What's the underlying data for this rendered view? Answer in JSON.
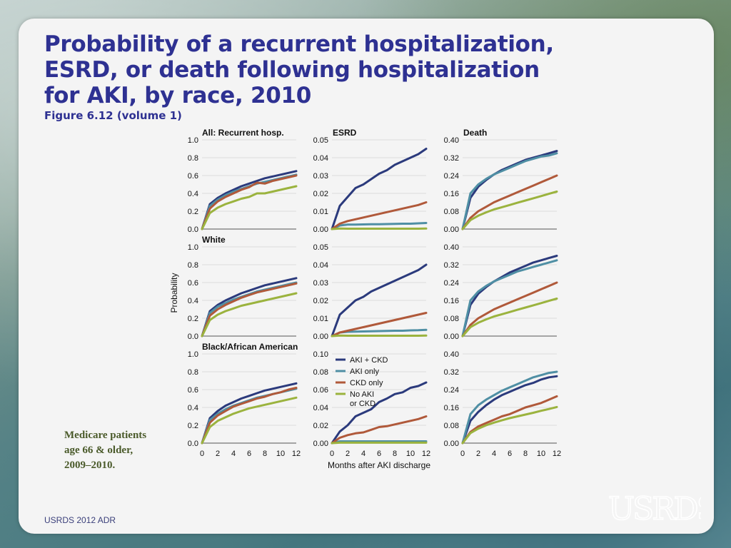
{
  "slide": {
    "title_lines": [
      "Probability of a recurrent hospitalization,",
      "ESRD, or death following hospitalization",
      "for AKI, by race, 2010"
    ],
    "subtitle": "Figure 6.12 (volume 1)",
    "note_lines": [
      "Medicare patients",
      "age 66 & older,",
      "2009–2010."
    ],
    "footer": "USRDS 2012 ADR",
    "logo_text": "USRDS"
  },
  "colors": {
    "AKI + CKD": "#2b3a7c",
    "AKI only": "#4f8fa4",
    "CKD only": "#b0593a",
    "No AKI or CKD": "#9bb33e"
  },
  "chart_data": {
    "type": "line",
    "xlabel": "Months after AKI discharge",
    "ylabel": "Probability",
    "x": [
      0,
      1,
      2,
      3,
      4,
      5,
      6,
      7,
      8,
      9,
      10,
      11,
      12
    ],
    "x_ticks": [
      0,
      2,
      4,
      6,
      8,
      10,
      12
    ],
    "legend": {
      "placement": "inside bottom-middle panel, top-left",
      "entries": [
        {
          "label": [
            "AKI + CKD"
          ],
          "series": "AKI + CKD"
        },
        {
          "label": [
            "AKI only"
          ],
          "series": "AKI only"
        },
        {
          "label": [
            "CKD only"
          ],
          "series": "CKD only"
        },
        {
          "label": [
            "No AKI",
            "or CKD"
          ],
          "series": "No AKI or CKD"
        }
      ]
    },
    "rows": [
      {
        "key": "all",
        "label": "All: Recurrent hosp.",
        "outcome_labels": [
          "",
          "ESRD",
          "Death"
        ]
      },
      {
        "key": "white",
        "label": "White",
        "outcome_labels": [
          "",
          "",
          ""
        ]
      },
      {
        "key": "black",
        "label": "Black/African American",
        "outcome_labels": [
          "",
          "",
          ""
        ]
      }
    ],
    "panels": [
      {
        "row": 0,
        "col": 0,
        "ylim": [
          0,
          1.0
        ],
        "yticks": [
          "0.0",
          "0.2",
          "0.4",
          "0.6",
          "0.8",
          "1.0"
        ],
        "series": [
          {
            "name": "AKI + CKD",
            "values": [
              0,
              0.28,
              0.35,
              0.4,
              0.44,
              0.48,
              0.51,
              0.54,
              0.57,
              0.59,
              0.61,
              0.63,
              0.65
            ]
          },
          {
            "name": "AKI only",
            "values": [
              0,
              0.26,
              0.33,
              0.38,
              0.42,
              0.45,
              0.48,
              0.51,
              0.53,
              0.55,
              0.57,
              0.59,
              0.61
            ]
          },
          {
            "name": "CKD only",
            "values": [
              0,
              0.23,
              0.31,
              0.36,
              0.4,
              0.44,
              0.47,
              0.52,
              0.51,
              0.54,
              0.56,
              0.58,
              0.6
            ]
          },
          {
            "name": "No AKI or CKD",
            "values": [
              0,
              0.18,
              0.24,
              0.28,
              0.31,
              0.34,
              0.36,
              0.4,
              0.4,
              0.42,
              0.44,
              0.46,
              0.48
            ]
          }
        ]
      },
      {
        "row": 0,
        "col": 1,
        "ylim": [
          0,
          0.05
        ],
        "yticks": [
          "0.00",
          "0.01",
          "0.02",
          "0.03",
          "0.04",
          "0.05"
        ],
        "series": [
          {
            "name": "AKI + CKD",
            "values": [
              0,
              0.013,
              0.018,
              0.023,
              0.025,
              0.028,
              0.031,
              0.033,
              0.036,
              0.038,
              0.04,
              0.042,
              0.045
            ]
          },
          {
            "name": "AKI only",
            "values": [
              0,
              0.002,
              0.0025,
              0.0025,
              0.0026,
              0.0027,
              0.0027,
              0.0028,
              0.0029,
              0.003,
              0.003,
              0.0032,
              0.0034
            ]
          },
          {
            "name": "CKD only",
            "values": [
              0,
              0.003,
              0.0045,
              0.0055,
              0.0065,
              0.0075,
              0.0085,
              0.0095,
              0.0105,
              0.0115,
              0.0125,
              0.0135,
              0.015
            ]
          },
          {
            "name": "No AKI or CKD",
            "values": [
              0,
              0.0003,
              0.0002,
              0.0002,
              0.0002,
              0.0002,
              0.0002,
              0.0002,
              0.0002,
              0.0002,
              0.0002,
              0.0002,
              0.0003
            ]
          }
        ]
      },
      {
        "row": 0,
        "col": 2,
        "ylim": [
          0,
          0.4
        ],
        "yticks": [
          "0.00",
          "0.08",
          "0.16",
          "0.24",
          "0.32",
          "0.40"
        ],
        "series": [
          {
            "name": "AKI + CKD",
            "values": [
              0,
              0.14,
              0.19,
              0.22,
              0.245,
              0.265,
              0.28,
              0.295,
              0.31,
              0.32,
              0.33,
              0.34,
              0.35
            ]
          },
          {
            "name": "AKI only",
            "values": [
              0,
              0.16,
              0.2,
              0.225,
              0.245,
              0.26,
              0.275,
              0.29,
              0.305,
              0.315,
              0.325,
              0.33,
              0.34
            ]
          },
          {
            "name": "CKD only",
            "values": [
              0,
              0.05,
              0.08,
              0.1,
              0.12,
              0.135,
              0.15,
              0.165,
              0.18,
              0.195,
              0.21,
              0.225,
              0.24
            ]
          },
          {
            "name": "No AKI or CKD",
            "values": [
              0,
              0.04,
              0.06,
              0.075,
              0.088,
              0.098,
              0.108,
              0.118,
              0.128,
              0.138,
              0.148,
              0.158,
              0.168
            ]
          }
        ]
      },
      {
        "row": 1,
        "col": 0,
        "ylim": [
          0,
          1.0
        ],
        "yticks": [
          "0.0",
          "0.2",
          "0.4",
          "0.6",
          "0.8",
          "1.0"
        ],
        "series": [
          {
            "name": "AKI + CKD",
            "values": [
              0,
              0.28,
              0.35,
              0.4,
              0.44,
              0.48,
              0.51,
              0.54,
              0.57,
              0.59,
              0.61,
              0.63,
              0.65
            ]
          },
          {
            "name": "AKI only",
            "values": [
              0,
              0.26,
              0.33,
              0.37,
              0.41,
              0.44,
              0.47,
              0.5,
              0.52,
              0.54,
              0.56,
              0.58,
              0.6
            ]
          },
          {
            "name": "CKD only",
            "values": [
              0,
              0.23,
              0.3,
              0.35,
              0.39,
              0.43,
              0.46,
              0.49,
              0.51,
              0.53,
              0.55,
              0.57,
              0.59
            ]
          },
          {
            "name": "No AKI or CKD",
            "values": [
              0,
              0.18,
              0.24,
              0.28,
              0.31,
              0.34,
              0.36,
              0.38,
              0.4,
              0.42,
              0.44,
              0.46,
              0.48
            ]
          }
        ]
      },
      {
        "row": 1,
        "col": 1,
        "ylim": [
          0,
          0.05
        ],
        "yticks": [
          "0.00",
          "0.01",
          "0.02",
          "0.03",
          "0.04",
          "0.05"
        ],
        "series": [
          {
            "name": "AKI + CKD",
            "values": [
              0,
              0.012,
              0.016,
              0.02,
              0.022,
              0.025,
              0.027,
              0.029,
              0.031,
              0.033,
              0.035,
              0.037,
              0.04
            ]
          },
          {
            "name": "AKI only",
            "values": [
              0,
              0.002,
              0.0024,
              0.0025,
              0.0026,
              0.0027,
              0.0028,
              0.0029,
              0.003,
              0.003,
              0.0032,
              0.0033,
              0.0035
            ]
          },
          {
            "name": "CKD only",
            "values": [
              0,
              0.002,
              0.003,
              0.004,
              0.005,
              0.006,
              0.007,
              0.008,
              0.009,
              0.01,
              0.011,
              0.012,
              0.013
            ]
          },
          {
            "name": "No AKI or CKD",
            "values": [
              0,
              0.0003,
              0.0002,
              0.0002,
              0.0002,
              0.0002,
              0.0002,
              0.0002,
              0.0002,
              0.0002,
              0.0002,
              0.0002,
              0.0003
            ]
          }
        ]
      },
      {
        "row": 1,
        "col": 2,
        "ylim": [
          0,
          0.4
        ],
        "yticks": [
          "0.00",
          "0.08",
          "0.16",
          "0.24",
          "0.32",
          "0.40"
        ],
        "series": [
          {
            "name": "AKI + CKD",
            "values": [
              0,
              0.14,
              0.19,
              0.22,
              0.245,
              0.265,
              0.285,
              0.3,
              0.315,
              0.33,
              0.34,
              0.35,
              0.36
            ]
          },
          {
            "name": "AKI only",
            "values": [
              0,
              0.16,
              0.2,
              0.225,
              0.245,
              0.26,
              0.275,
              0.29,
              0.3,
              0.31,
              0.32,
              0.33,
              0.34
            ]
          },
          {
            "name": "CKD only",
            "values": [
              0,
              0.05,
              0.08,
              0.1,
              0.12,
              0.135,
              0.15,
              0.165,
              0.18,
              0.195,
              0.21,
              0.225,
              0.24
            ]
          },
          {
            "name": "No AKI or CKD",
            "values": [
              0,
              0.04,
              0.06,
              0.075,
              0.088,
              0.098,
              0.108,
              0.118,
              0.128,
              0.138,
              0.148,
              0.158,
              0.168
            ]
          }
        ]
      },
      {
        "row": 2,
        "col": 0,
        "ylim": [
          0,
          1.0
        ],
        "yticks": [
          "0.0",
          "0.2",
          "0.4",
          "0.6",
          "0.8",
          "1.0"
        ],
        "series": [
          {
            "name": "AKI + CKD",
            "values": [
              0,
              0.28,
              0.36,
              0.42,
              0.46,
              0.5,
              0.53,
              0.56,
              0.59,
              0.61,
              0.63,
              0.65,
              0.67
            ]
          },
          {
            "name": "AKI only",
            "values": [
              0,
              0.26,
              0.33,
              0.38,
              0.42,
              0.45,
              0.48,
              0.51,
              0.53,
              0.55,
              0.57,
              0.59,
              0.61
            ]
          },
          {
            "name": "CKD only",
            "values": [
              0,
              0.23,
              0.31,
              0.36,
              0.41,
              0.44,
              0.47,
              0.5,
              0.52,
              0.55,
              0.57,
              0.6,
              0.62
            ]
          },
          {
            "name": "No AKI or CKD",
            "values": [
              0,
              0.18,
              0.25,
              0.29,
              0.33,
              0.36,
              0.39,
              0.41,
              0.43,
              0.45,
              0.47,
              0.49,
              0.51
            ]
          }
        ]
      },
      {
        "row": 2,
        "col": 1,
        "ylim": [
          0,
          0.1
        ],
        "yticks": [
          "0.00",
          "0.02",
          "0.04",
          "0.06",
          "0.08",
          "0.10"
        ],
        "series": [
          {
            "name": "AKI + CKD",
            "values": [
              0,
              0.013,
              0.02,
              0.03,
              0.034,
              0.038,
              0.046,
              0.05,
              0.055,
              0.057,
              0.062,
              0.064,
              0.068
            ]
          },
          {
            "name": "AKI only",
            "values": [
              0,
              0.002,
              0.002,
              0.002,
              0.002,
              0.002,
              0.002,
              0.002,
              0.002,
              0.002,
              0.002,
              0.002,
              0.002
            ]
          },
          {
            "name": "CKD only",
            "values": [
              0,
              0.006,
              0.009,
              0.011,
              0.012,
              0.015,
              0.018,
              0.019,
              0.021,
              0.023,
              0.025,
              0.027,
              0.03
            ]
          },
          {
            "name": "No AKI or CKD",
            "values": [
              0,
              0.0005,
              0.0005,
              0.0005,
              0.0005,
              0.0005,
              0.0005,
              0.0005,
              0.0005,
              0.0005,
              0.0005,
              0.0005,
              0.0005
            ]
          }
        ]
      },
      {
        "row": 2,
        "col": 2,
        "ylim": [
          0,
          0.4
        ],
        "yticks": [
          "0.00",
          "0.08",
          "0.16",
          "0.24",
          "0.32",
          "0.40"
        ],
        "series": [
          {
            "name": "AKI + CKD",
            "values": [
              0,
              0.1,
              0.14,
              0.17,
              0.195,
              0.215,
              0.23,
              0.245,
              0.26,
              0.27,
              0.285,
              0.295,
              0.3
            ]
          },
          {
            "name": "AKI only",
            "values": [
              0,
              0.13,
              0.17,
              0.195,
              0.215,
              0.235,
              0.25,
              0.265,
              0.28,
              0.295,
              0.305,
              0.315,
              0.32
            ]
          },
          {
            "name": "CKD only",
            "values": [
              0,
              0.05,
              0.075,
              0.09,
              0.105,
              0.12,
              0.13,
              0.145,
              0.16,
              0.17,
              0.18,
              0.195,
              0.21
            ]
          },
          {
            "name": "No AKI or CKD",
            "values": [
              0,
              0.045,
              0.065,
              0.08,
              0.092,
              0.102,
              0.112,
              0.12,
              0.128,
              0.136,
              0.145,
              0.153,
              0.162
            ]
          }
        ]
      }
    ]
  }
}
